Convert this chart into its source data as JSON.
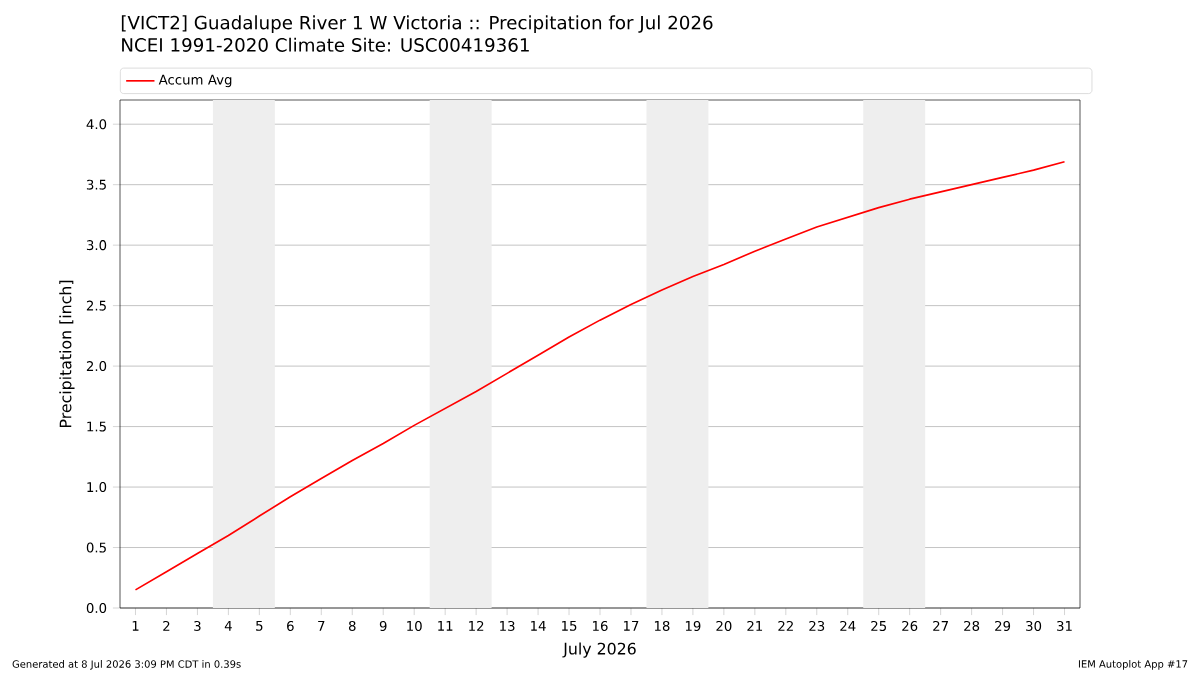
{
  "chart_data": {
    "type": "line",
    "title": "[VICT2] Guadalupe River 1 W Victoria :: Precipitation for Jul 2026",
    "subtitle": "NCEI 1991-2020 Climate Site: USC00419361",
    "xlabel": "July 2026",
    "ylabel": "Precipitation [inch]",
    "x": [
      1,
      2,
      3,
      4,
      5,
      6,
      7,
      8,
      9,
      10,
      11,
      12,
      13,
      14,
      15,
      16,
      17,
      18,
      19,
      20,
      21,
      22,
      23,
      24,
      25,
      26,
      27,
      28,
      29,
      30,
      31
    ],
    "series": [
      {
        "name": "Accum Avg",
        "color": "#ff0000",
        "values": [
          0.15,
          0.3,
          0.45,
          0.6,
          0.76,
          0.92,
          1.07,
          1.22,
          1.36,
          1.51,
          1.65,
          1.79,
          1.94,
          2.09,
          2.24,
          2.38,
          2.51,
          2.63,
          2.74,
          2.84,
          2.95,
          3.05,
          3.15,
          3.23,
          3.31,
          3.38,
          3.44,
          3.5,
          3.56,
          3.62,
          3.69
        ]
      }
    ],
    "xlim": [
      0.5,
      31.5
    ],
    "ylim": [
      0,
      4.2
    ],
    "xticks": [
      1,
      2,
      3,
      4,
      5,
      6,
      7,
      8,
      9,
      10,
      11,
      12,
      13,
      14,
      15,
      16,
      17,
      18,
      19,
      20,
      21,
      22,
      23,
      24,
      25,
      26,
      27,
      28,
      29,
      30,
      31
    ],
    "yticks": [
      {
        "value": 0,
        "label": "0.0"
      },
      {
        "value": 0.5,
        "label": "0.5"
      },
      {
        "value": 1,
        "label": "1.0"
      },
      {
        "value": 1.5,
        "label": "1.5"
      },
      {
        "value": 2,
        "label": "2.0"
      },
      {
        "value": 2.5,
        "label": "2.5"
      },
      {
        "value": 3,
        "label": "3.0"
      },
      {
        "value": 3.5,
        "label": "3.5"
      },
      {
        "value": 4,
        "label": "4.0"
      }
    ],
    "bands": [
      {
        "axis": "x",
        "from": 3.5,
        "to": 5.5,
        "color": "#eeeeee"
      },
      {
        "axis": "x",
        "from": 10.5,
        "to": 12.5,
        "color": "#eeeeee"
      },
      {
        "axis": "x",
        "from": 17.5,
        "to": 19.5,
        "color": "#eeeeee"
      },
      {
        "axis": "x",
        "from": 24.5,
        "to": 26.5,
        "color": "#eeeeee"
      }
    ],
    "grid": "y",
    "legend": "top",
    "line_style": "solid",
    "annotations": [
      "Generated at 8 Jul 2026 3:09 PM CDT in 0.39s",
      "IEM Autoplot App #17"
    ]
  }
}
